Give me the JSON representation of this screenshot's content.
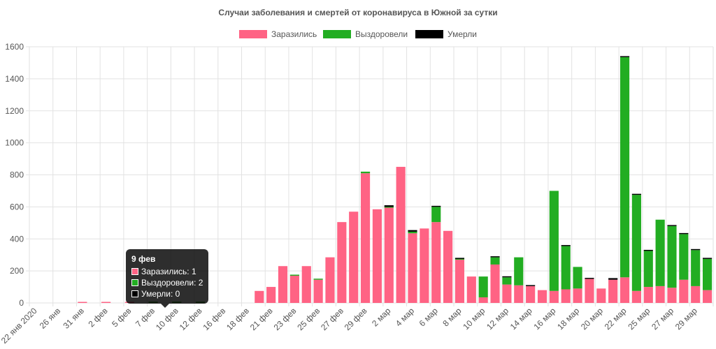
{
  "colors": {
    "infected": "#ff6384",
    "recovered": "#22ad22",
    "deaths": "#000000"
  },
  "chart_data": {
    "type": "bar",
    "stacked": true,
    "title": "Случаи заболевания и смертей от коронавируса в Южной за сутки",
    "legend": {
      "position": "top",
      "entries": [
        "Заразились",
        "Выздоровели",
        "Умерли"
      ]
    },
    "ylim": [
      0,
      1600
    ],
    "yticks": [
      0,
      200,
      400,
      600,
      800,
      1000,
      1200,
      1400,
      1600
    ],
    "grid": true,
    "categories": [
      "22 янв 2020",
      "",
      "26 янв",
      "",
      "31 янв",
      "",
      "2 фев",
      "",
      "5 фев",
      "",
      "7 фев",
      "",
      "10 фев",
      "",
      "12 фев",
      "",
      "16 фев",
      "",
      "18 фев",
      "",
      "21 фев",
      "",
      "23 фев",
      "",
      "25 фев",
      "",
      "27 фев",
      "",
      "29 фев",
      "",
      "2 мар",
      "",
      "4 мар",
      "",
      "6 мар",
      "",
      "8 мар",
      "",
      "10 мар",
      "",
      "12 мар",
      "",
      "14 мар",
      "",
      "16 мар",
      "",
      "18 мар",
      "",
      "20 мар",
      "",
      "22 мар",
      "",
      "25 мар",
      "",
      "27 мар",
      "",
      "29 мар",
      ""
    ],
    "series": [
      {
        "name": "Заразились",
        "values": [
          0,
          0,
          0,
          0,
          5,
          0,
          2,
          0,
          1,
          0,
          1,
          0,
          1,
          0,
          1,
          0,
          0,
          0,
          0,
          75,
          100,
          230,
          170,
          230,
          145,
          285,
          505,
          570,
          810,
          585,
          595,
          850,
          435,
          465,
          505,
          450,
          270,
          165,
          35,
          240,
          115,
          110,
          105,
          80,
          75,
          85,
          90,
          150,
          90,
          145,
          160,
          75,
          100,
          105,
          95,
          145,
          105,
          80
        ]
      },
      {
        "name": "Выздоровели",
        "values": [
          0,
          0,
          0,
          0,
          0,
          0,
          0,
          0,
          0,
          0,
          2,
          0,
          1,
          0,
          2,
          0,
          0,
          0,
          0,
          0,
          0,
          0,
          5,
          0,
          5,
          0,
          0,
          0,
          10,
          0,
          5,
          0,
          10,
          0,
          95,
          0,
          5,
          0,
          130,
          45,
          45,
          175,
          0,
          0,
          625,
          270,
          135,
          0,
          0,
          0,
          1375,
          600,
          225,
          415,
          385,
          285,
          225,
          195
        ]
      },
      {
        "name": "Умерли",
        "values": [
          0,
          0,
          0,
          0,
          0,
          0,
          0,
          0,
          0,
          0,
          0,
          0,
          0,
          0,
          0,
          0,
          0,
          0,
          0,
          0,
          0,
          0,
          0,
          0,
          0,
          0,
          0,
          0,
          0,
          0,
          10,
          0,
          10,
          0,
          5,
          0,
          5,
          0,
          0,
          5,
          5,
          0,
          5,
          0,
          0,
          5,
          0,
          5,
          0,
          10,
          5,
          5,
          5,
          0,
          5,
          5,
          5,
          5
        ]
      }
    ]
  },
  "tooltip": {
    "title": "9 фев",
    "rows": [
      {
        "label": "Заразились: 1",
        "color": "#ff6384"
      },
      {
        "label": "Выздоровели: 2",
        "color": "#22ad22"
      },
      {
        "label": "Умерли: 0",
        "color": "#000000"
      }
    ]
  }
}
